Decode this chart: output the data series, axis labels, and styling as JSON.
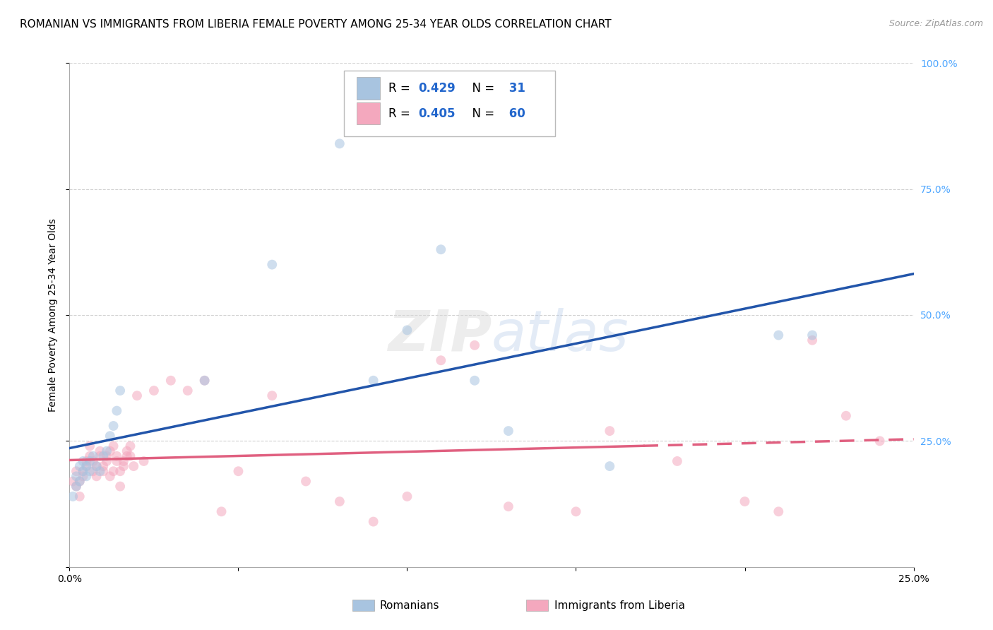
{
  "title": "ROMANIAN VS IMMIGRANTS FROM LIBERIA FEMALE POVERTY AMONG 25-34 YEAR OLDS CORRELATION CHART",
  "source": "Source: ZipAtlas.com",
  "ylabel": "Female Poverty Among 25-34 Year Olds",
  "xlim": [
    0,
    0.25
  ],
  "ylim": [
    0,
    1.0
  ],
  "x_ticks": [
    0.0,
    0.05,
    0.1,
    0.15,
    0.2,
    0.25
  ],
  "x_tick_labels": [
    "0.0%",
    "",
    "",
    "",
    "",
    "25.0%"
  ],
  "y_ticks_right": [
    0.0,
    0.25,
    0.5,
    0.75,
    1.0
  ],
  "y_tick_labels_right": [
    "",
    "25.0%",
    "50.0%",
    "75.0%",
    "100.0%"
  ],
  "romanian_color": "#a8c4e0",
  "liberia_color": "#f4a8be",
  "romanian_line_color": "#2255aa",
  "liberia_line_color": "#e06080",
  "R_romanian": 0.429,
  "N_romanian": 31,
  "R_liberia": 0.405,
  "N_liberia": 60,
  "background_color": "#ffffff",
  "grid_color": "#cccccc",
  "watermark": "ZIPatlas",
  "romanian_x": [
    0.001,
    0.002,
    0.002,
    0.003,
    0.003,
    0.004,
    0.004,
    0.005,
    0.005,
    0.006,
    0.006,
    0.007,
    0.008,
    0.009,
    0.01,
    0.011,
    0.012,
    0.013,
    0.014,
    0.015,
    0.04,
    0.06,
    0.08,
    0.09,
    0.1,
    0.11,
    0.12,
    0.13,
    0.16,
    0.21,
    0.22
  ],
  "romanian_y": [
    0.14,
    0.16,
    0.18,
    0.2,
    0.17,
    0.19,
    0.21,
    0.18,
    0.2,
    0.21,
    0.19,
    0.22,
    0.2,
    0.19,
    0.22,
    0.23,
    0.26,
    0.28,
    0.31,
    0.35,
    0.37,
    0.6,
    0.84,
    0.37,
    0.47,
    0.63,
    0.37,
    0.27,
    0.2,
    0.46,
    0.46
  ],
  "liberia_x": [
    0.001,
    0.002,
    0.002,
    0.003,
    0.003,
    0.004,
    0.004,
    0.005,
    0.005,
    0.006,
    0.006,
    0.007,
    0.007,
    0.008,
    0.008,
    0.009,
    0.009,
    0.01,
    0.01,
    0.011,
    0.011,
    0.012,
    0.012,
    0.013,
    0.013,
    0.014,
    0.014,
    0.015,
    0.015,
    0.016,
    0.016,
    0.017,
    0.017,
    0.018,
    0.018,
    0.019,
    0.02,
    0.022,
    0.025,
    0.03,
    0.035,
    0.04,
    0.045,
    0.05,
    0.06,
    0.07,
    0.08,
    0.09,
    0.1,
    0.11,
    0.12,
    0.13,
    0.15,
    0.16,
    0.18,
    0.2,
    0.21,
    0.22,
    0.23,
    0.24
  ],
  "liberia_y": [
    0.17,
    0.16,
    0.19,
    0.17,
    0.14,
    0.19,
    0.18,
    0.21,
    0.2,
    0.24,
    0.22,
    0.19,
    0.21,
    0.2,
    0.18,
    0.22,
    0.23,
    0.19,
    0.2,
    0.21,
    0.22,
    0.23,
    0.18,
    0.19,
    0.24,
    0.21,
    0.22,
    0.19,
    0.16,
    0.2,
    0.21,
    0.22,
    0.23,
    0.24,
    0.22,
    0.2,
    0.34,
    0.21,
    0.35,
    0.37,
    0.35,
    0.37,
    0.11,
    0.19,
    0.34,
    0.17,
    0.13,
    0.09,
    0.14,
    0.41,
    0.44,
    0.12,
    0.11,
    0.27,
    0.21,
    0.13,
    0.11,
    0.45,
    0.3,
    0.25
  ],
  "title_fontsize": 11,
  "source_fontsize": 9,
  "legend_fontsize": 12,
  "axis_label_fontsize": 10,
  "tick_fontsize": 10,
  "marker_size": 100,
  "marker_alpha": 0.55,
  "line_width": 2.5,
  "liberia_solid_cutoff": 0.17
}
